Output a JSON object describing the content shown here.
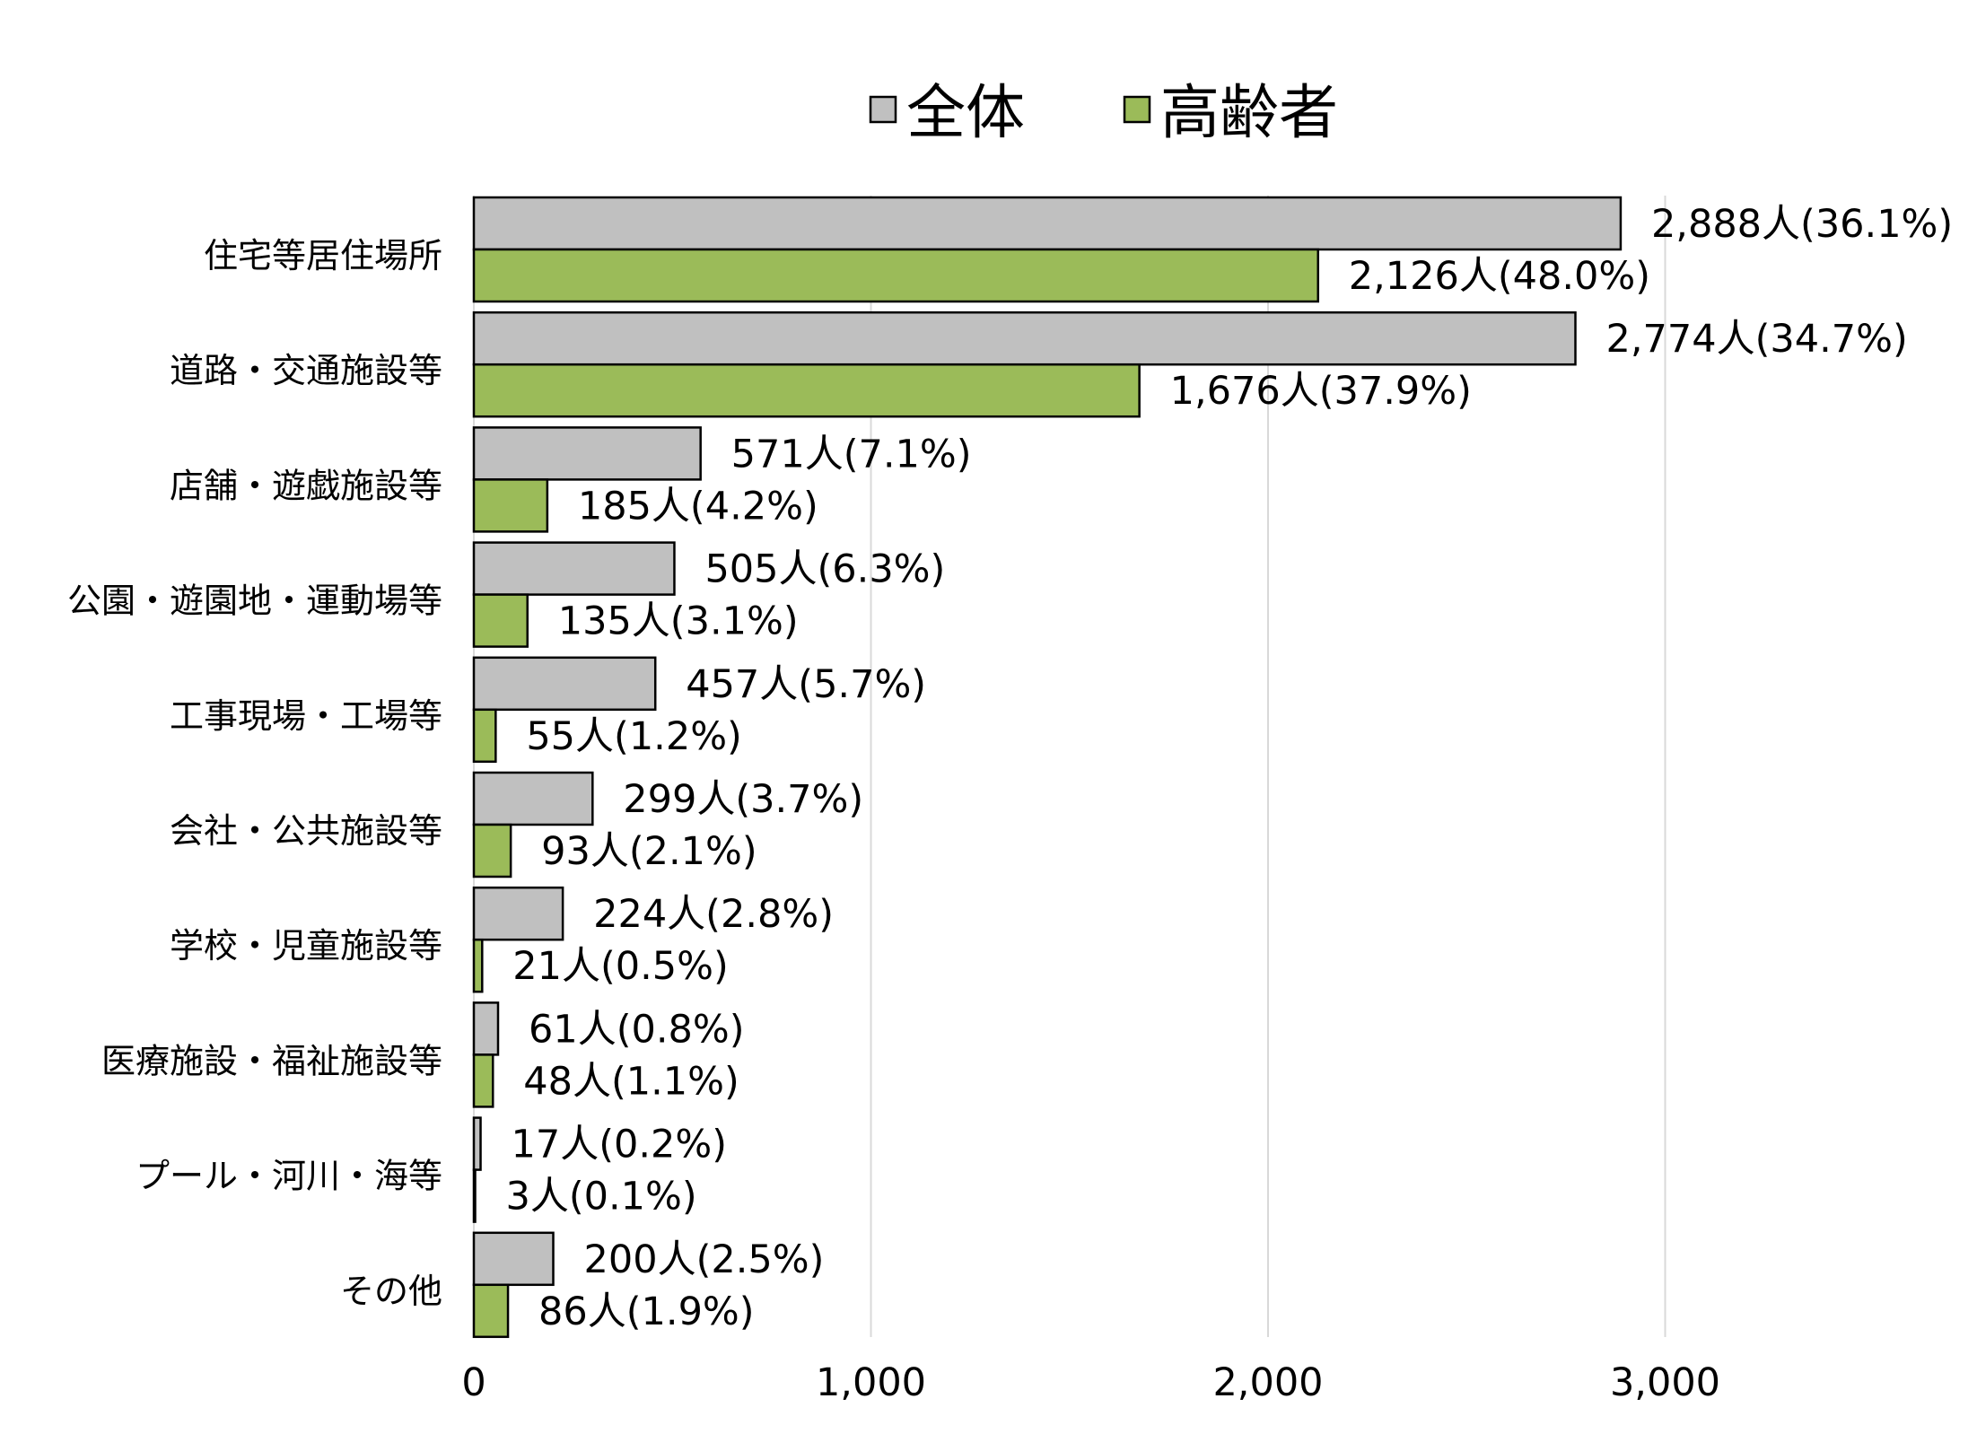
{
  "chart_data": {
    "type": "bar",
    "orientation": "horizontal",
    "categories": [
      "住宅等居住場所",
      "道路・交通施設等",
      "店舗・遊戯施設等",
      "公園・遊園地・運動場等",
      "工事現場・工場等",
      "会社・公共施設等",
      "学校・児童施設等",
      "医療施設・福祉施設等",
      "プール・河川・海等",
      "その他"
    ],
    "series": [
      {
        "name": "全体",
        "color": "#c0c0c0",
        "values": [
          2888,
          2774,
          571,
          505,
          457,
          299,
          224,
          61,
          17,
          200
        ],
        "labels": [
          "2,888人(36.1%)",
          "2,774人(34.7%)",
          "571人(7.1%)",
          "505人(6.3%)",
          "457人(5.7%)",
          "299人(3.7%)",
          "224人(2.8%)",
          "61人(0.8%)",
          "17人(0.2%)",
          "200人(2.5%)"
        ]
      },
      {
        "name": "高齢者",
        "color": "#9bbb59",
        "values": [
          2126,
          1676,
          185,
          135,
          55,
          93,
          21,
          48,
          3,
          86
        ],
        "labels": [
          "2,126人(48.0%)",
          "1,676人(37.9%)",
          "185人(4.2%)",
          "135人(3.1%)",
          "55人(1.2%)",
          "93人(2.1%)",
          "21人(0.5%)",
          "48人(1.1%)",
          "3人(0.1%)",
          "86人(1.9%)"
        ]
      }
    ],
    "xlim": [
      0,
      3700
    ],
    "ticks": [
      0,
      1000,
      2000,
      3000
    ],
    "tick_labels": [
      "0",
      "1,000",
      "2,000",
      "3,000"
    ],
    "legend_position": "top",
    "grid": true
  }
}
